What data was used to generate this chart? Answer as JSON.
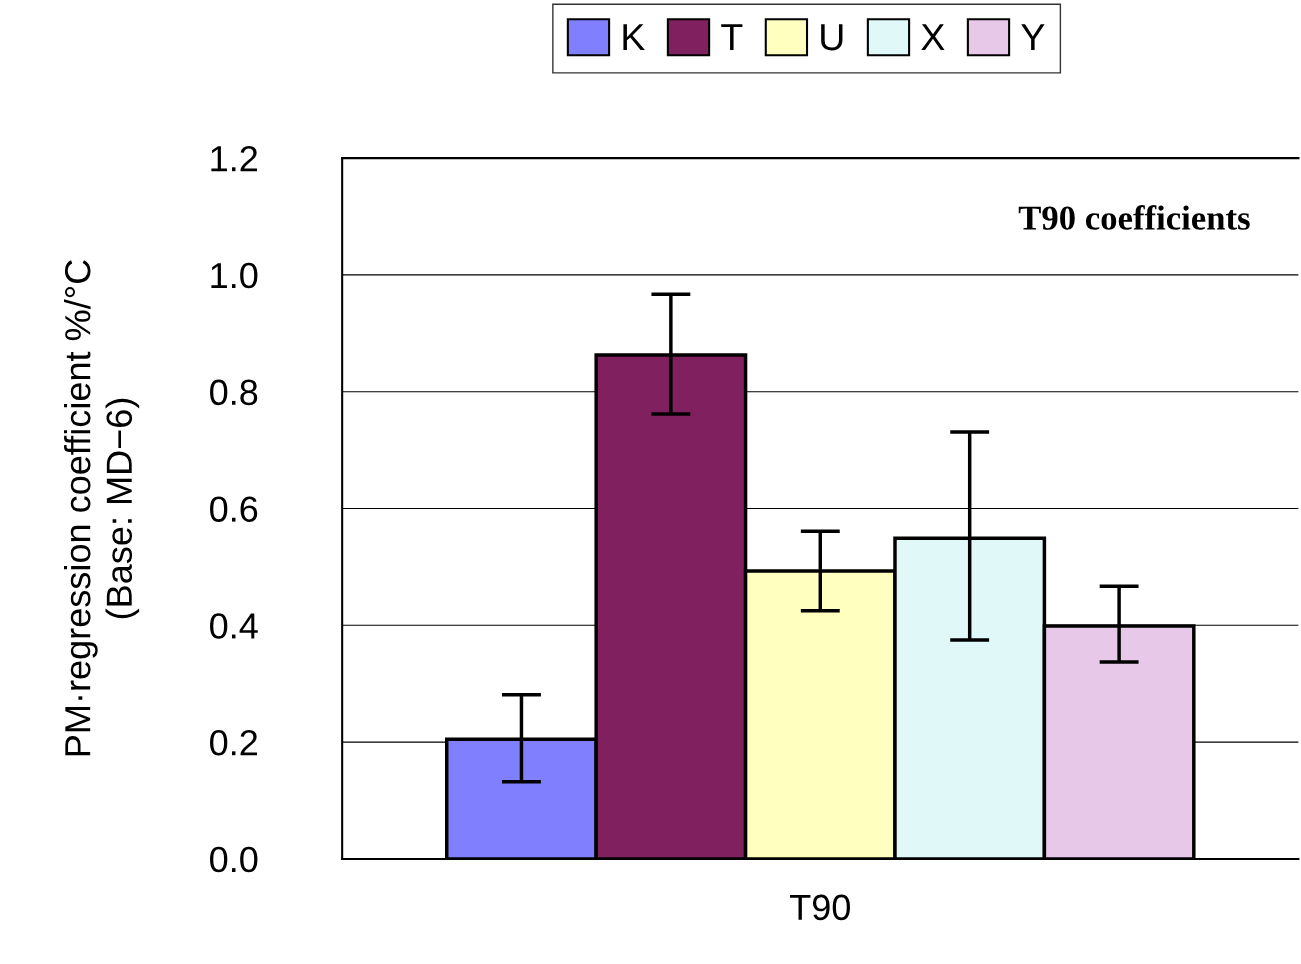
{
  "chart_data": {
    "type": "bar",
    "categories": [
      "T90"
    ],
    "ylabel": "PM·regression coefficient %/°C\n(Base: MD−6)",
    "series": [
      {
        "name": "K",
        "color": "#8080ff",
        "values": [
          0.205
        ],
        "errors": [
          [
            0.132,
            0.281
          ]
        ]
      },
      {
        "name": "T",
        "color": "#80205f",
        "values": [
          0.863
        ],
        "errors": [
          [
            0.762,
            0.967
          ]
        ]
      },
      {
        "name": "U",
        "color": "#ffffc0",
        "values": [
          0.493
        ],
        "errors": [
          [
            0.425,
            0.561
          ]
        ]
      },
      {
        "name": "X",
        "color": "#e0f8f8",
        "values": [
          0.549
        ],
        "errors": [
          [
            0.375,
            0.731
          ]
        ]
      },
      {
        "name": "Y",
        "color": "#e8c8e8",
        "values": [
          0.399
        ],
        "errors": [
          [
            0.337,
            0.467
          ]
        ]
      }
    ],
    "annotations": [
      "T90 coefficients"
    ],
    "ylim": [
      0,
      1.2
    ],
    "yticks": [
      {
        "value": 0,
        "label": "0.0"
      },
      0.2,
      0.4,
      0.6,
      0.8,
      {
        "value": 1,
        "label": "1.0"
      },
      1.2
    ],
    "grid": "y",
    "legend": "top"
  }
}
